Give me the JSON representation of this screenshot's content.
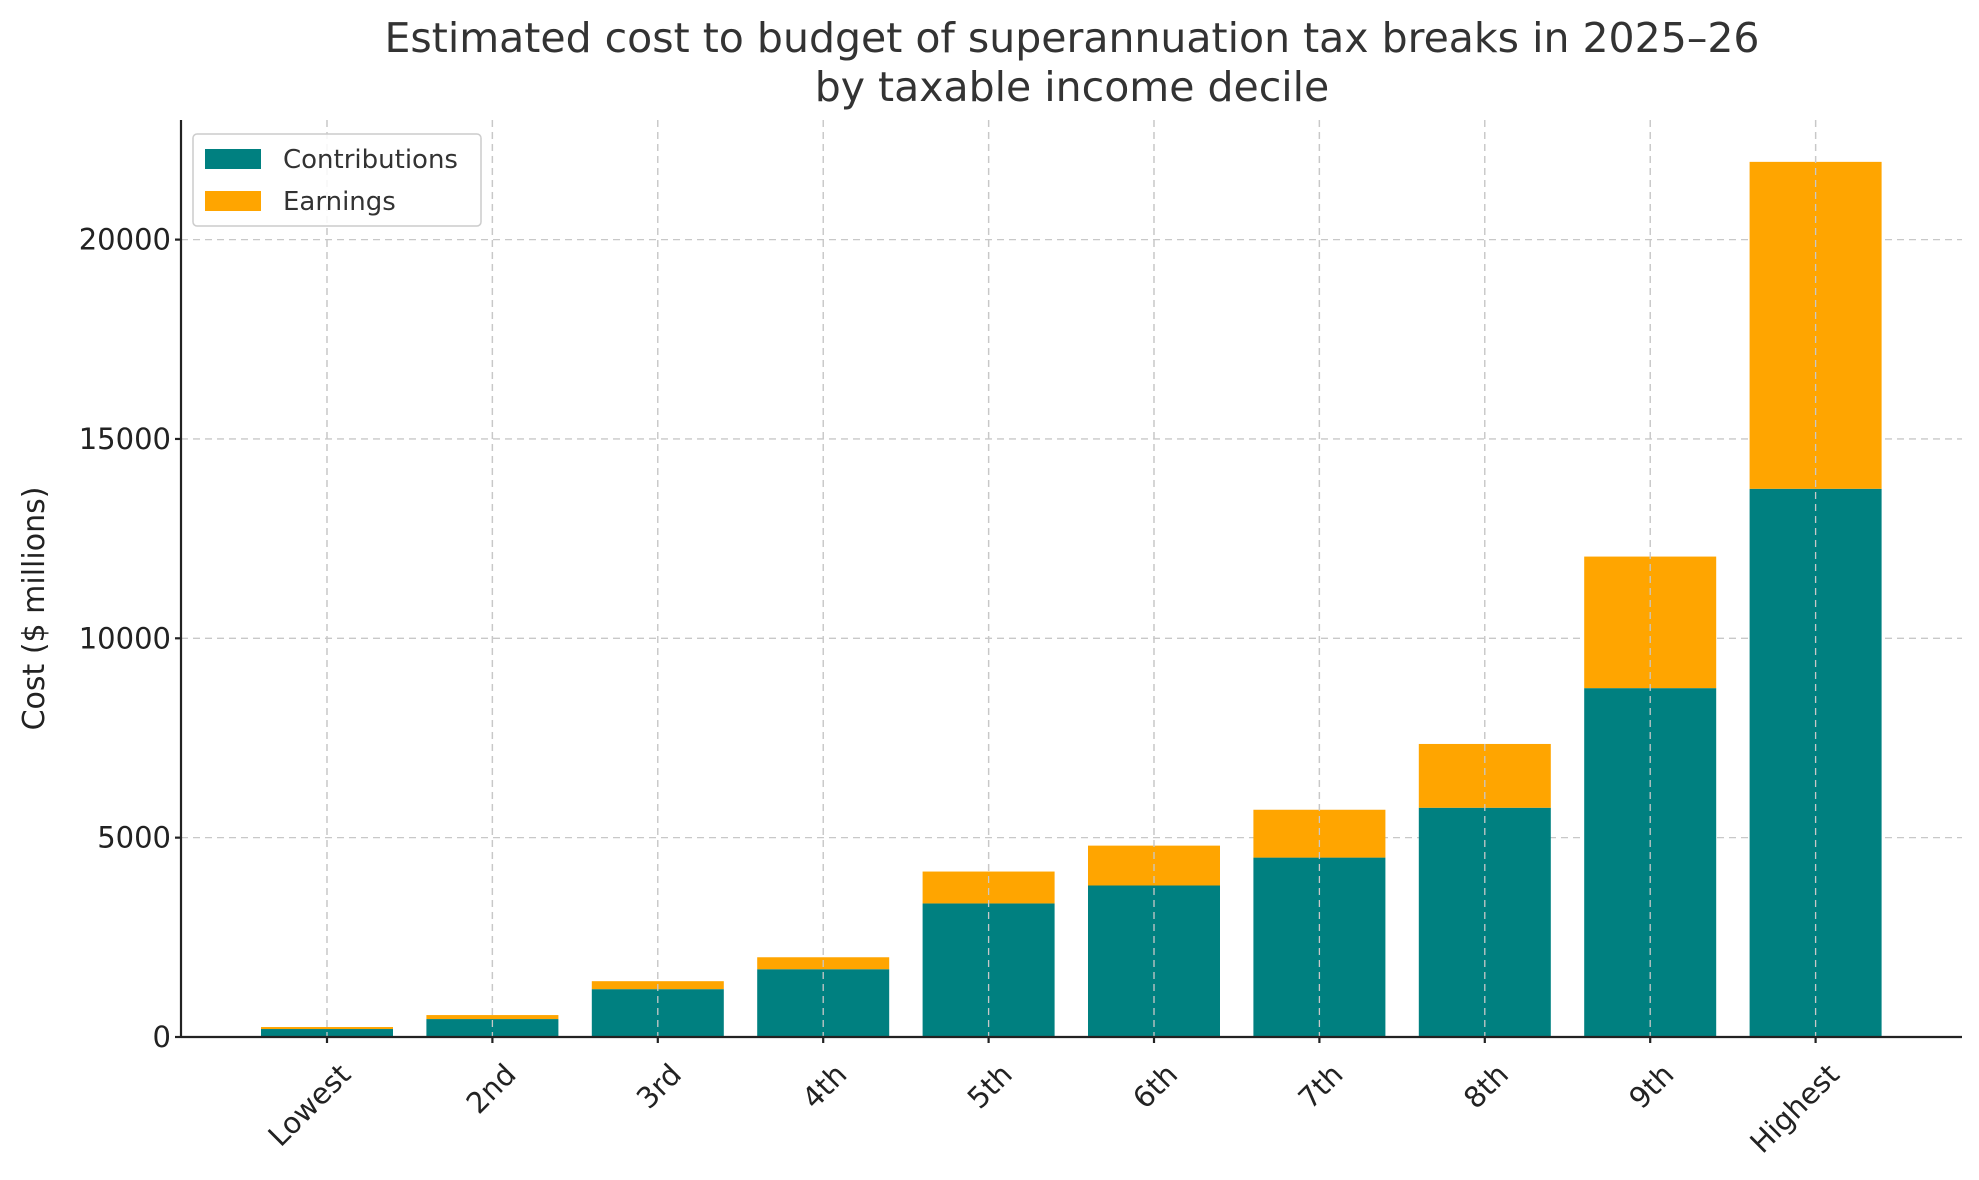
{
  "chart_data": {
    "type": "bar",
    "stacked": true,
    "title_lines": [
      "Estimated cost to budget of superannuation tax breaks in 2025–26",
      "by taxable income decile"
    ],
    "xlabel": "",
    "ylabel": "Cost ($ millions)",
    "ylim": [
      0,
      23000
    ],
    "yticks": [
      "0",
      "5000",
      "10000",
      "15000",
      "20000"
    ],
    "ytick_values": [
      0,
      5000,
      10000,
      15000,
      20000
    ],
    "grid": true,
    "legend_position": "top-left",
    "categories": [
      "Lowest",
      "2nd",
      "3rd",
      "4th",
      "5th",
      "6th",
      "7th",
      "8th",
      "9th",
      "Highest"
    ],
    "series": [
      {
        "name": "Contributions",
        "color": "#008080",
        "values": [
          200,
          450,
          1200,
          1700,
          3350,
          3800,
          4500,
          5750,
          8750,
          13750
        ]
      },
      {
        "name": "Earnings",
        "color": "#FFA500",
        "values": [
          50,
          100,
          200,
          300,
          800,
          1000,
          1200,
          1600,
          3300,
          8200
        ]
      }
    ]
  }
}
